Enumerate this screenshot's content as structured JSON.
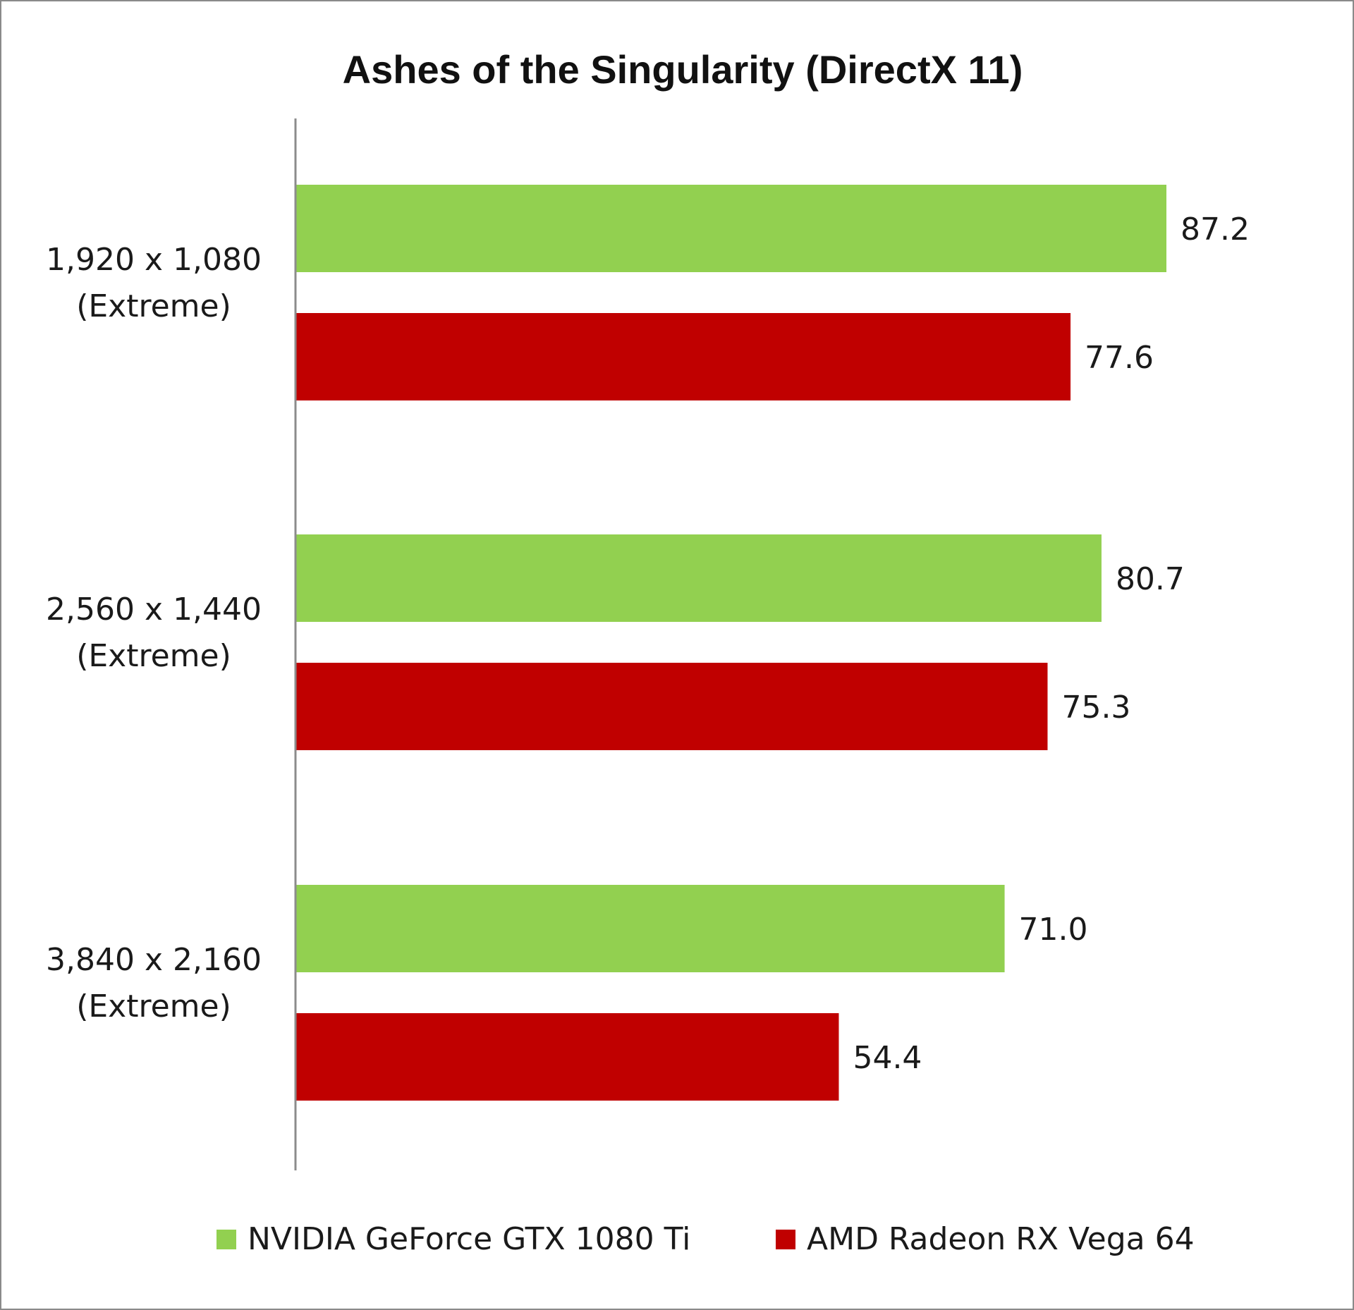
{
  "chart_data": {
    "type": "bar",
    "orientation": "horizontal",
    "title": "Ashes of the Singularity (DirectX 11)",
    "categories": [
      [
        "1,920 x 1,080",
        "(Extreme)"
      ],
      [
        "2,560 x 1,440",
        "(Extreme)"
      ],
      [
        "3,840 x 2,160",
        "(Extreme)"
      ]
    ],
    "series": [
      {
        "name": "NVIDIA GeForce GTX 1080 Ti",
        "color": "#92d050",
        "values": [
          87.2,
          80.7,
          71.0
        ],
        "labels": [
          "87.2",
          "80.7",
          "71.0"
        ]
      },
      {
        "name": "AMD Radeon RX Vega 64",
        "color": "#c00000",
        "values": [
          77.6,
          75.3,
          54.4
        ],
        "labels": [
          "77.6",
          "75.3",
          "54.4"
        ]
      }
    ],
    "xlim": [
      0,
      100
    ],
    "grid": false,
    "legend_position": "bottom"
  }
}
